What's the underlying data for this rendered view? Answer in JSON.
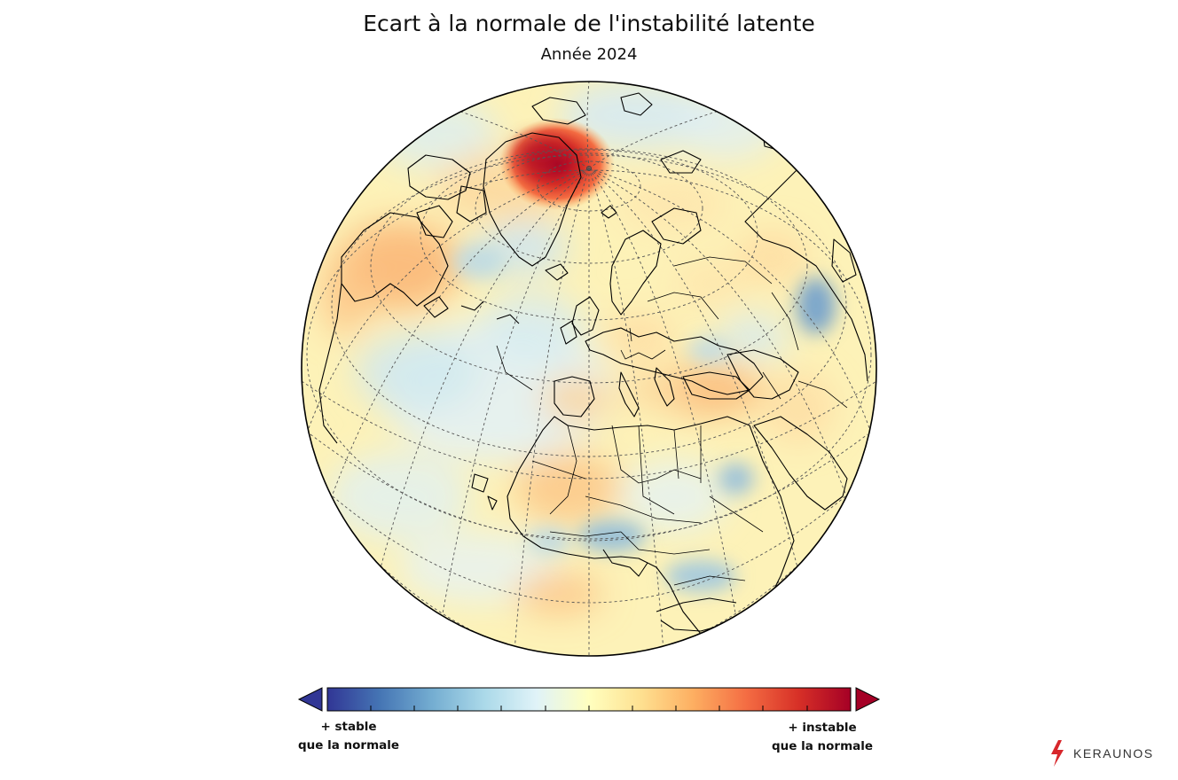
{
  "title": "Ecart à la normale de l'instabilité latente",
  "subtitle": "Année 2024",
  "legend": {
    "left_line1": "+ stable",
    "left_line2": "que la normale",
    "right_line1": "+ instable",
    "right_line2": "que la normale",
    "colors": [
      "#313695",
      "#4575b4",
      "#74add1",
      "#abd9e9",
      "#e0f3f8",
      "#ffffbf",
      "#fee090",
      "#fdae61",
      "#f46d43",
      "#d73027",
      "#a50026"
    ]
  },
  "brand": {
    "name": "KERAUNOS",
    "accent": "#d7262b"
  },
  "map": {
    "projection": "orthographic",
    "center": "Europe / North Atlantic",
    "anomalies": [
      {
        "region": "Greenland north",
        "level": "strong positive"
      },
      {
        "region": "Labrador",
        "level": "positive"
      },
      {
        "region": "Mediterranean / Turkey",
        "level": "positive"
      },
      {
        "region": "Sahara west",
        "level": "positive"
      },
      {
        "region": "Central Asia",
        "level": "negative"
      },
      {
        "region": "West Africa coast",
        "level": "negative"
      },
      {
        "region": "Central Africa east",
        "level": "negative"
      }
    ]
  }
}
